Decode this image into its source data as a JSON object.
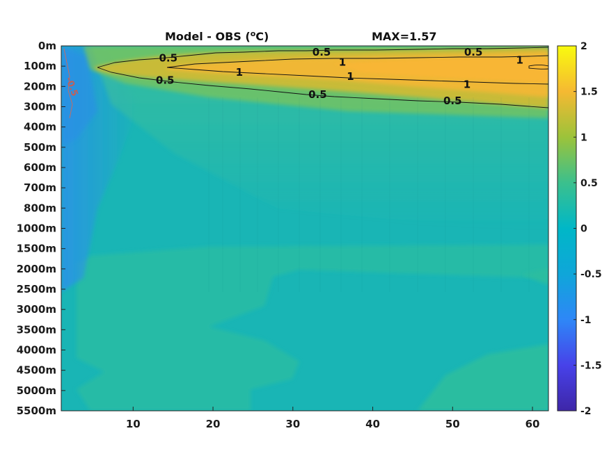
{
  "chart_data": {
    "type": "heatmap",
    "title_left": "Model - OBS (",
    "title_unit_sup": "o",
    "title_unit_tail": "C)",
    "title_right": "MAX=1.57",
    "y_tick_labels": [
      "0m",
      "100m",
      "200m",
      "300m",
      "400m",
      "500m",
      "600m",
      "700m",
      "800m",
      "1000m",
      "1500m",
      "2000m",
      "2500m",
      "3000m",
      "3500m",
      "4000m",
      "4500m",
      "5000m",
      "5500m"
    ],
    "x_ticks": [
      10,
      20,
      30,
      40,
      50,
      60
    ],
    "x_range": [
      1,
      62
    ],
    "colorbar": {
      "ticks": [
        2,
        1.5,
        1,
        0.5,
        0,
        -0.5,
        -1,
        -1.5,
        -2
      ],
      "range": [
        -2,
        2
      ],
      "colormap": "parula"
    },
    "contour_levels": [
      0.5,
      1
    ],
    "contour_labels": [
      {
        "text": "0.5",
        "x": 14.4,
        "depth_index": 0.6
      },
      {
        "text": "0.5",
        "x": 33.6,
        "depth_index": 0.3
      },
      {
        "text": "0.5",
        "x": 52.6,
        "depth_index": 0.3
      },
      {
        "text": "1",
        "x": 58.4,
        "depth_index": 0.7
      },
      {
        "text": "1",
        "x": 36.2,
        "depth_index": 0.8
      },
      {
        "text": "1",
        "x": 23.3,
        "depth_index": 1.3
      },
      {
        "text": "1",
        "x": 37.2,
        "depth_index": 1.5
      },
      {
        "text": "1",
        "x": 51.8,
        "depth_index": 1.9
      },
      {
        "text": "0.5",
        "x": 14.0,
        "depth_index": 1.7
      },
      {
        "text": "0.5",
        "x": 33.1,
        "depth_index": 2.4
      },
      {
        "text": "0.5",
        "x": 50.0,
        "depth_index": 2.7
      },
      {
        "text": "-0.5",
        "x": 2.4,
        "depth_index": 2.0
      }
    ],
    "max_value": 1.57
  }
}
